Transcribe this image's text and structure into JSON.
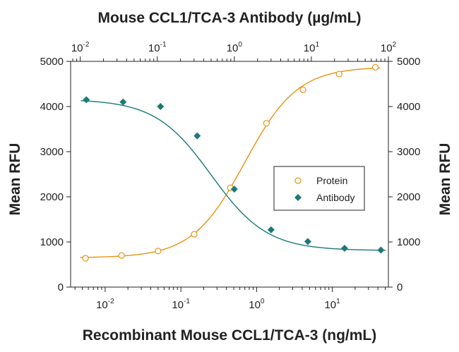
{
  "chart_data": {
    "type": "scatter",
    "title": "Mouse CCL1/TCA-3 Antibody (µg/mL)",
    "xlabel": "Recombinant Mouse CCL1/TCA-3 (ng/mL)",
    "ylabel": "Mean RFU",
    "ylabel_right": "Mean RFU",
    "x_scale": "log",
    "xlim": [
      0.0035,
      55
    ],
    "ylim": [
      0,
      5000
    ],
    "yticks": [
      "0",
      "1000",
      "2000",
      "3000",
      "4000",
      "5000"
    ],
    "bottom_axis": {
      "scale": "log",
      "ticks": [
        {
          "base": "10",
          "exp": "-2",
          "value": 0.01
        },
        {
          "base": "10",
          "exp": "-1",
          "value": 0.1
        },
        {
          "base": "10",
          "exp": "0",
          "value": 1
        },
        {
          "base": "10",
          "exp": "1",
          "value": 10
        }
      ]
    },
    "top_axis": {
      "scale": "log",
      "label": "Mouse CCL1/TCA-3 Antibody (µg/mL)",
      "xlim": [
        0.0075,
        100
      ],
      "ticks": [
        {
          "base": "10",
          "exp": "-2",
          "value": 0.01
        },
        {
          "base": "10",
          "exp": "-1",
          "value": 0.1
        },
        {
          "base": "10",
          "exp": "0",
          "value": 1
        },
        {
          "base": "10",
          "exp": "1",
          "value": 10
        },
        {
          "base": "10",
          "exp": "2",
          "value": 100
        }
      ]
    },
    "legend_position": "center-right",
    "grid": false,
    "series": [
      {
        "name": "Protein",
        "axis": "bottom",
        "marker": "open-circle",
        "color": "#E8920E",
        "x": [
          0.0055,
          0.0165,
          0.05,
          0.15,
          0.45,
          1.35,
          4.1,
          12.3,
          37
        ],
        "y": [
          640,
          700,
          800,
          1170,
          2200,
          3630,
          4370,
          4720,
          4870
        ],
        "fit": {
          "bottom": 650,
          "top": 4880,
          "ec50": 0.7,
          "hill": 1.25
        }
      },
      {
        "name": "Antibody",
        "axis": "top",
        "marker": "filled-diamond",
        "color": "#1A7A78",
        "x": [
          0.012,
          0.036,
          0.11,
          0.33,
          1.0,
          3.0,
          9.0,
          27,
          80
        ],
        "y": [
          4150,
          4100,
          4000,
          3350,
          2170,
          1270,
          1010,
          860,
          820
        ],
        "fit": {
          "bottom": 810,
          "top": 4160,
          "ec50": 0.5,
          "hill": 1.2
        }
      }
    ]
  }
}
